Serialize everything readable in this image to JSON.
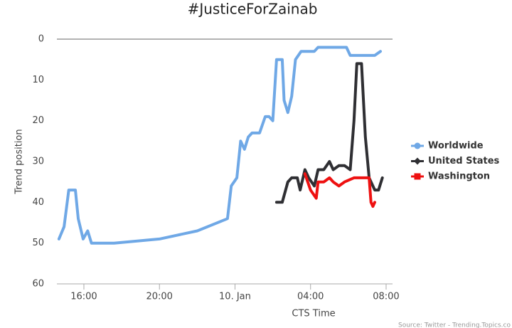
{
  "chart_data": {
    "type": "line",
    "title": "#JusticeForZainab",
    "x_label": "CTS Time",
    "y_label": "Trend position",
    "source": "Source: Twitter - Trending.Topics.co",
    "xlim": [
      14.57,
      32.34
    ],
    "xticks": [
      {
        "value": 16,
        "label": "16:00"
      },
      {
        "value": 20,
        "label": "20:00"
      },
      {
        "value": 24,
        "label": "10. Jan"
      },
      {
        "value": 28,
        "label": "04:00"
      },
      {
        "value": 32,
        "label": "08:00"
      }
    ],
    "ylim": [
      0,
      60
    ],
    "yticks": [
      0,
      10,
      20,
      30,
      40,
      50,
      60
    ],
    "y_reversed": true,
    "grid": false,
    "legend": "right",
    "series": [
      {
        "name": "Worldwide",
        "color": "#6fa8e6",
        "marker": "circle",
        "x": [
          14.68,
          14.95,
          15.2,
          15.55,
          15.7,
          15.96,
          16.2,
          16.4,
          17.6,
          20.0,
          22.0,
          23.6,
          23.8,
          24.1,
          24.3,
          24.5,
          24.7,
          24.9,
          25.3,
          25.6,
          25.8,
          26.0,
          26.2,
          26.5,
          26.6,
          26.8,
          27.0,
          27.2,
          27.5,
          28.2,
          28.4,
          29.9,
          30.1,
          31.4,
          31.7
        ],
        "values": [
          49,
          46,
          37,
          37,
          44,
          49,
          47,
          50,
          50,
          49,
          47,
          44,
          36,
          34,
          25,
          27,
          24,
          23,
          23,
          19,
          19,
          20,
          5,
          5,
          15,
          18,
          14,
          5,
          3,
          3,
          2,
          2,
          4,
          4,
          3
        ]
      },
      {
        "name": "United States",
        "color": "#2f2f33",
        "marker": "diamond",
        "x": [
          26.2,
          26.5,
          26.8,
          27.0,
          27.3,
          27.45,
          27.7,
          27.9,
          28.2,
          28.4,
          28.7,
          29.0,
          29.2,
          29.5,
          29.8,
          30.1,
          30.3,
          30.45,
          30.7,
          30.9,
          31.1,
          31.4,
          31.6,
          31.8
        ],
        "values": [
          40,
          40,
          35,
          34,
          34,
          37,
          32,
          34,
          36,
          32,
          32,
          30,
          32,
          31,
          31,
          32,
          20,
          6,
          6,
          24,
          34,
          37,
          37,
          34
        ]
      },
      {
        "name": "Washington",
        "color": "#ee1111",
        "marker": "square",
        "x": [
          27.7,
          28.0,
          28.3,
          28.4,
          28.7,
          29.0,
          29.2,
          29.5,
          29.8,
          30.3,
          31.1,
          31.2,
          31.3,
          31.4
        ],
        "values": [
          33,
          37,
          39,
          35,
          35,
          34,
          35,
          36,
          35,
          34,
          34,
          40,
          41,
          40
        ]
      }
    ]
  }
}
